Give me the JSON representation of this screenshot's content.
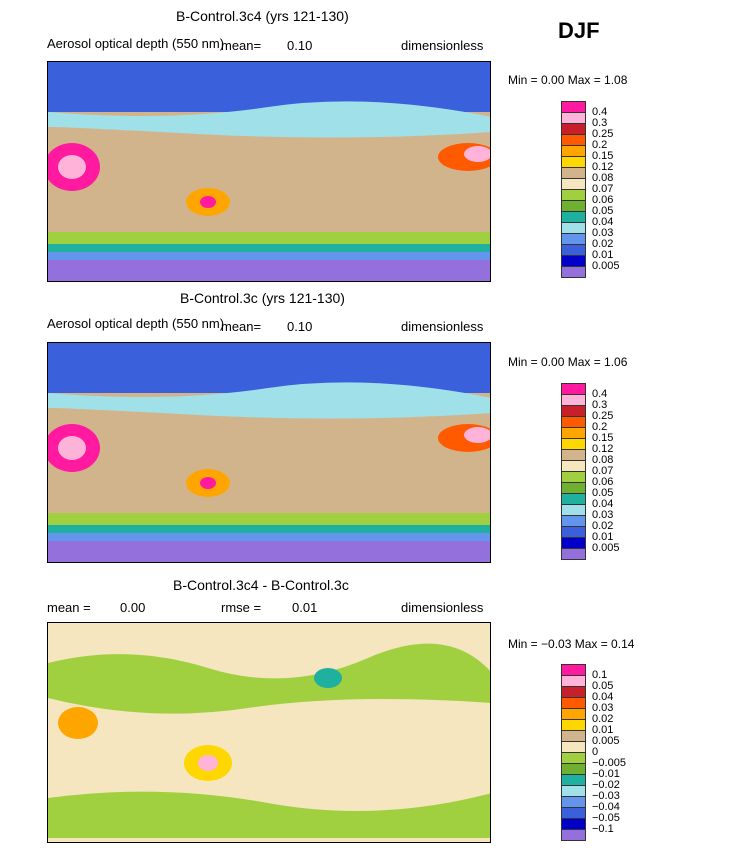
{
  "season": "DJF",
  "panels": [
    {
      "title": "B-Control.3c4 (yrs 121-130)",
      "subtitle": "Aerosol optical depth (550 nm)",
      "left_stat_label": "mean=",
      "left_stat_value": "0.10",
      "mid_stat_label": "",
      "mid_stat_value": "",
      "units": "dimensionless",
      "range_text": "Min =    0.00  Max =    1.08",
      "legend": {
        "labels": [
          "0.4",
          "0.3",
          "0.25",
          "0.2",
          "0.15",
          "0.12",
          "0.08",
          "0.07",
          "0.06",
          "0.05",
          "0.04",
          "0.03",
          "0.02",
          "0.01",
          "0.005"
        ],
        "colors": [
          "#ff1aa0",
          "#ffb3d9",
          "#c8202a",
          "#ff5a00",
          "#ffa500",
          "#ffd700",
          "#d2b48c",
          "#f5e6c0",
          "#a0d040",
          "#70b030",
          "#20b0a0",
          "#a0e0e8",
          "#6495ed",
          "#3a60dc",
          "#0000c8",
          "#9370db"
        ]
      },
      "map_dominant": "#d2b48c"
    },
    {
      "title": "B-Control.3c (yrs 121-130)",
      "subtitle": "Aerosol optical depth (550 nm)",
      "left_stat_label": "mean=",
      "left_stat_value": "0.10",
      "mid_stat_label": "",
      "mid_stat_value": "",
      "units": "dimensionless",
      "range_text": "Min =    0.00  Max =    1.06",
      "legend": {
        "labels": [
          "0.4",
          "0.3",
          "0.25",
          "0.2",
          "0.15",
          "0.12",
          "0.08",
          "0.07",
          "0.06",
          "0.05",
          "0.04",
          "0.03",
          "0.02",
          "0.01",
          "0.005"
        ],
        "colors": [
          "#ff1aa0",
          "#ffb3d9",
          "#c8202a",
          "#ff5a00",
          "#ffa500",
          "#ffd700",
          "#d2b48c",
          "#f5e6c0",
          "#a0d040",
          "#70b030",
          "#20b0a0",
          "#a0e0e8",
          "#6495ed",
          "#3a60dc",
          "#0000c8",
          "#9370db"
        ]
      },
      "map_dominant": "#d2b48c"
    },
    {
      "title": "B-Control.3c4 - B-Control.3c",
      "subtitle": "",
      "left_stat_label": "mean =",
      "left_stat_value": "0.00",
      "mid_stat_label": "rmse =",
      "mid_stat_value": "0.01",
      "units": "dimensionless",
      "range_text": "Min =  −0.03  Max =    0.14",
      "legend": {
        "labels": [
          "0.1",
          "0.05",
          "0.04",
          "0.03",
          "0.02",
          "0.01",
          "0.005",
          "0",
          "−0.005",
          "−0.01",
          "−0.02",
          "−0.03",
          "−0.04",
          "−0.05",
          "−0.1"
        ],
        "colors": [
          "#ff1aa0",
          "#ffb3d9",
          "#c8202a",
          "#ff5a00",
          "#ffa500",
          "#ffd700",
          "#d2b48c",
          "#f5e6c0",
          "#a0d040",
          "#70b030",
          "#20b0a0",
          "#a0e0e8",
          "#6495ed",
          "#3a60dc",
          "#0000c8",
          "#9370db"
        ]
      },
      "map_dominant": "#f5e6c0"
    }
  ]
}
